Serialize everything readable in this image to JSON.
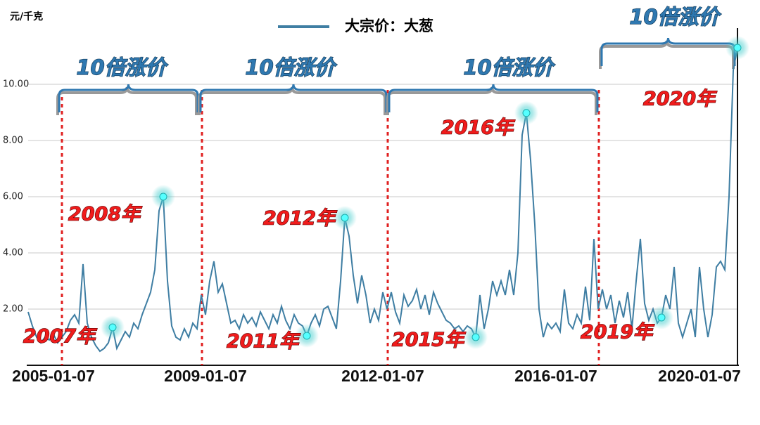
{
  "chart_data": {
    "type": "line",
    "y_label": "元/千克",
    "series": [
      {
        "name": "大宗价：大葱",
        "color": "#3f7ea3",
        "values": [
          1.9,
          1.4,
          1.0,
          0.8,
          1.0,
          0.9,
          1.1,
          0.8,
          1.0,
          1.2,
          1.6,
          1.8,
          1.5,
          3.6,
          1.5,
          1.0,
          0.7,
          0.5,
          0.6,
          0.8,
          1.35,
          0.6,
          0.9,
          1.2,
          1.0,
          1.5,
          1.3,
          1.8,
          2.2,
          2.6,
          3.4,
          5.5,
          6.0,
          3.0,
          1.4,
          1.0,
          0.9,
          1.3,
          1.0,
          1.5,
          1.3,
          2.5,
          1.8,
          3.0,
          3.7,
          2.6,
          2.9,
          2.2,
          1.5,
          1.6,
          1.3,
          1.8,
          1.5,
          1.7,
          1.4,
          1.9,
          1.6,
          1.3,
          1.8,
          1.5,
          2.1,
          1.6,
          1.3,
          1.8,
          1.5,
          1.4,
          1.05,
          1.5,
          1.8,
          1.4,
          2.0,
          2.1,
          1.7,
          1.3,
          3.0,
          5.25,
          4.6,
          3.2,
          2.2,
          3.2,
          2.5,
          1.5,
          2.0,
          1.6,
          2.6,
          2.0,
          2.6,
          1.9,
          1.5,
          2.5,
          2.1,
          2.3,
          2.7,
          2.0,
          2.5,
          1.8,
          2.6,
          2.2,
          1.9,
          1.6,
          1.5,
          1.3,
          1.4,
          1.2,
          1.4,
          1.3,
          1.0,
          2.5,
          1.3,
          2.0,
          3.0,
          2.5,
          3.0,
          2.5,
          3.4,
          2.5,
          4.0,
          8.2,
          8.98,
          7.3,
          5.0,
          2.0,
          1.0,
          1.5,
          1.3,
          1.5,
          1.2,
          2.7,
          1.5,
          1.3,
          1.8,
          1.5,
          2.8,
          1.6,
          4.5,
          2.0,
          2.7,
          2.0,
          2.5,
          1.5,
          2.3,
          1.7,
          2.6,
          1.3,
          3.0,
          4.5,
          2.2,
          1.6,
          2.0,
          1.5,
          1.7,
          2.5,
          2.0,
          3.5,
          1.5,
          1.0,
          1.5,
          2.0,
          1.0,
          3.5,
          2.0,
          1.0,
          1.8,
          3.5,
          3.7,
          3.4,
          6.0,
          10.5,
          11.3
        ]
      }
    ],
    "categories": [
      null,
      null,
      null,
      null,
      null,
      null,
      "2005-01-07",
      null,
      null,
      null,
      null,
      null,
      null,
      null,
      null,
      null,
      null,
      null,
      null,
      null,
      null,
      null,
      null,
      null,
      null,
      null,
      null,
      null,
      null,
      null,
      null,
      null,
      null,
      null,
      null,
      null,
      null,
      null,
      null,
      null,
      null,
      null,
      "2009-01-07",
      null,
      null,
      null,
      null,
      null,
      null,
      null,
      null,
      null,
      null,
      null,
      null,
      null,
      null,
      null,
      null,
      null,
      null,
      null,
      null,
      null,
      null,
      null,
      null,
      null,
      null,
      null,
      null,
      null,
      null,
      null,
      null,
      null,
      null,
      null,
      null,
      null,
      null,
      null,
      null,
      null,
      "2012-01-07",
      null,
      null,
      null,
      null,
      null,
      null,
      null,
      null,
      null,
      null,
      null,
      null,
      null,
      null,
      null,
      null,
      null,
      null,
      null,
      null,
      null,
      null,
      null,
      null,
      null,
      null,
      null,
      null,
      null,
      null,
      null,
      null,
      null,
      null,
      null,
      null,
      null,
      null,
      null,
      null,
      "2016-01-07",
      null,
      null,
      null,
      null,
      null,
      null,
      null,
      null,
      null,
      null,
      null,
      null,
      null,
      null,
      null,
      null,
      null,
      null,
      null,
      null,
      null,
      null,
      null,
      null,
      null,
      null,
      null,
      null,
      null,
      null,
      null,
      null,
      null,
      "2020-01-07",
      null,
      null,
      null,
      null,
      null,
      null,
      null,
      null,
      null
    ],
    "ylim": [
      0,
      12
    ],
    "yticks": [
      {
        "value": 2,
        "label": "2.00"
      },
      {
        "value": 4,
        "label": "4.00"
      },
      {
        "value": 6,
        "label": "6.00"
      },
      {
        "value": 8,
        "label": "8.00"
      },
      {
        "value": 10,
        "label": "10.00"
      }
    ],
    "grid": true,
    "annotations": [
      "2007年",
      "2008年",
      "2011年",
      "2012年",
      "2015年",
      "2016年",
      "2019年",
      "2020年"
    ],
    "brackets": [
      "10倍涨价",
      "10倍涨价",
      "10倍涨价",
      "10倍涨价"
    ]
  }
}
